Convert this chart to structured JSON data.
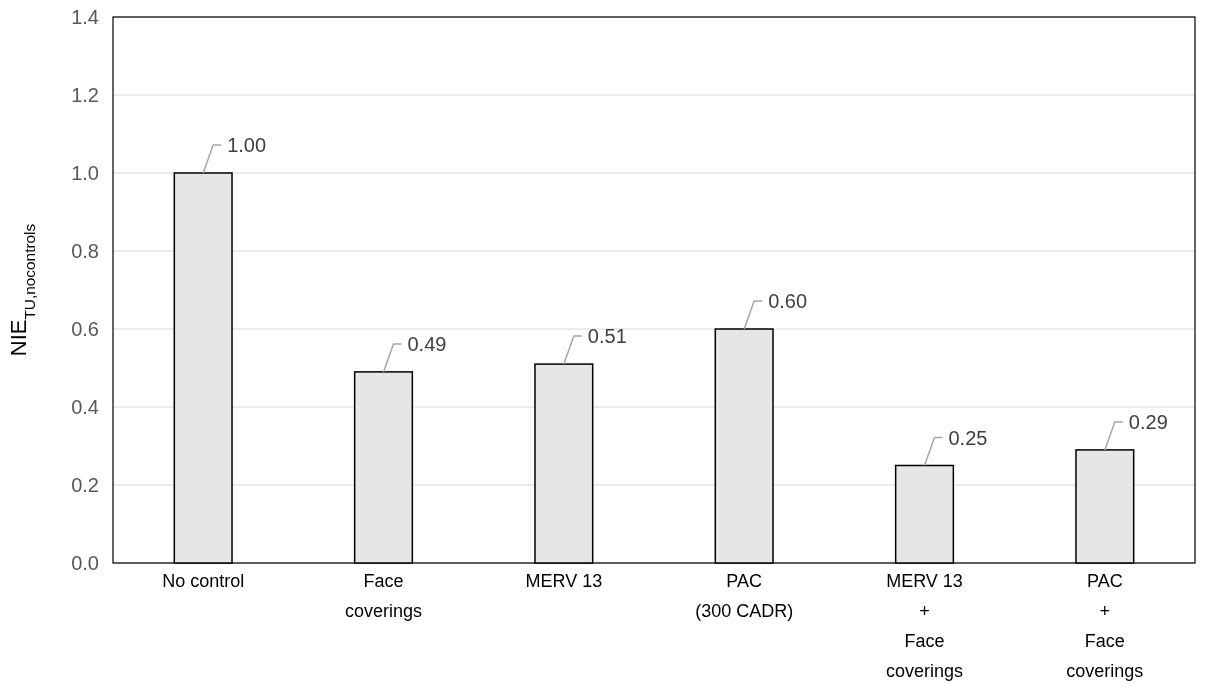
{
  "chart_data": {
    "type": "bar",
    "ylabel": "NIE$_{TU,nocontrols}$",
    "categories": [
      "No control",
      "Face\ncoverings",
      "MERV 13",
      "PAC\n(300 CADR)",
      "MERV 13\n+\nFace\ncoverings",
      "PAC\n+\nFace\ncoverings"
    ],
    "values": [
      1.0,
      0.49,
      0.51,
      0.6,
      0.25,
      0.29
    ],
    "value_labels": [
      "1.00",
      "0.49",
      "0.51",
      "0.60",
      "0.25",
      "0.29"
    ],
    "color": "#e7e6e6",
    "ylim": [
      0,
      1.4
    ],
    "yticks": [
      {
        "value": 0,
        "label": "0.0"
      },
      {
        "value": 0.2,
        "label": "0.2"
      },
      {
        "value": 0.4,
        "label": "0.4"
      },
      {
        "value": 0.6,
        "label": "0.6"
      },
      {
        "value": 0.8,
        "label": "0.8"
      },
      {
        "value": 1.0,
        "label": "1.0"
      },
      {
        "value": 1.2,
        "label": "1.2"
      },
      {
        "value": 1.4,
        "label": "1.4"
      }
    ],
    "grid": "y"
  }
}
